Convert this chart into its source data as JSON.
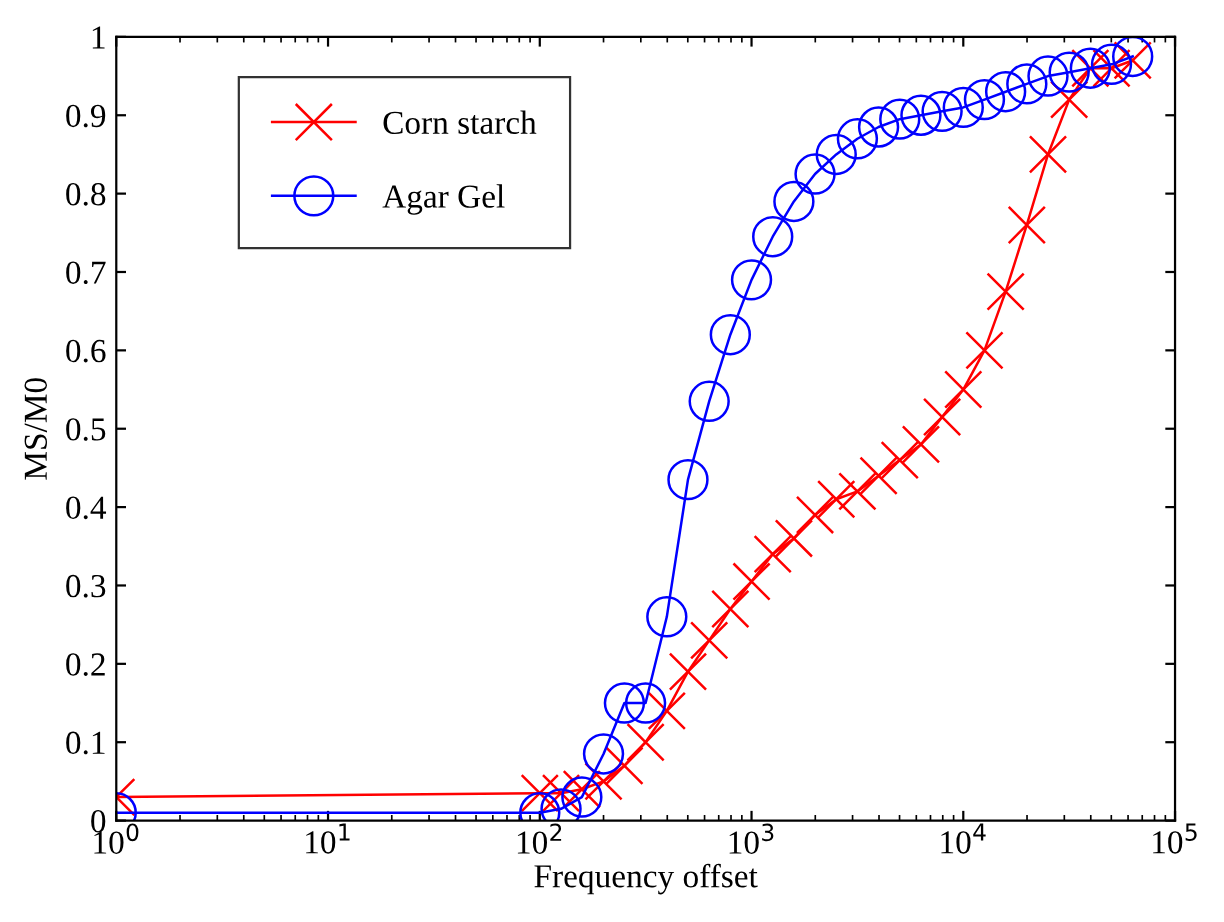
{
  "chart_data": {
    "type": "line",
    "xlabel": "Frequency offset",
    "ylabel": "MS/M0",
    "log": "x",
    "x": [
      1,
      100,
      126,
      158,
      200,
      251,
      316,
      398,
      501,
      631,
      794,
      1000,
      1259,
      1585,
      1995,
      2512,
      3162,
      3981,
      5012,
      6310,
      7943,
      10000,
      12589,
      15849,
      19953,
      25119,
      31623,
      39811,
      50119,
      63096
    ],
    "series": [
      {
        "name": "Corn starch",
        "color": "#ff0000",
        "marker": "cross",
        "values": [
          0.03,
          0.035,
          0.035,
          0.04,
          0.05,
          0.07,
          0.1,
          0.14,
          0.19,
          0.23,
          0.27,
          0.305,
          0.34,
          0.36,
          0.39,
          0.41,
          0.42,
          0.44,
          0.46,
          0.48,
          0.515,
          0.55,
          0.6,
          0.675,
          0.76,
          0.85,
          0.92,
          0.96,
          0.96,
          0.97
        ]
      },
      {
        "name": "Agar Gel",
        "color": "#0000ff",
        "marker": "circle",
        "values": [
          0.01,
          0.01,
          0.015,
          0.03,
          0.085,
          0.15,
          0.15,
          0.26,
          0.435,
          0.535,
          0.62,
          0.69,
          0.745,
          0.79,
          0.825,
          0.85,
          0.87,
          0.885,
          0.895,
          0.9,
          0.905,
          0.91,
          0.92,
          0.93,
          0.94,
          0.95,
          0.955,
          0.96,
          0.965,
          0.975
        ]
      }
    ],
    "xlim": [
      1,
      100000
    ],
    "xticks": [
      {
        "value": 1,
        "label": "10$^{0}$"
      },
      {
        "value": 10,
        "label": "10$^{1}$"
      },
      {
        "value": 100,
        "label": "10$^{2}$"
      },
      {
        "value": 1000,
        "label": "10$^{3}$"
      },
      {
        "value": 10000,
        "label": "10$^{4}$"
      },
      {
        "value": 100000,
        "label": "10$^{5}$"
      }
    ],
    "ylim": [
      0,
      1
    ],
    "yticks": [
      0,
      0.1,
      0.2,
      0.3,
      0.4,
      0.5,
      0.6,
      0.7,
      0.8,
      0.9,
      1
    ],
    "grid": false,
    "legend": "top left",
    "line_style": "solid"
  }
}
